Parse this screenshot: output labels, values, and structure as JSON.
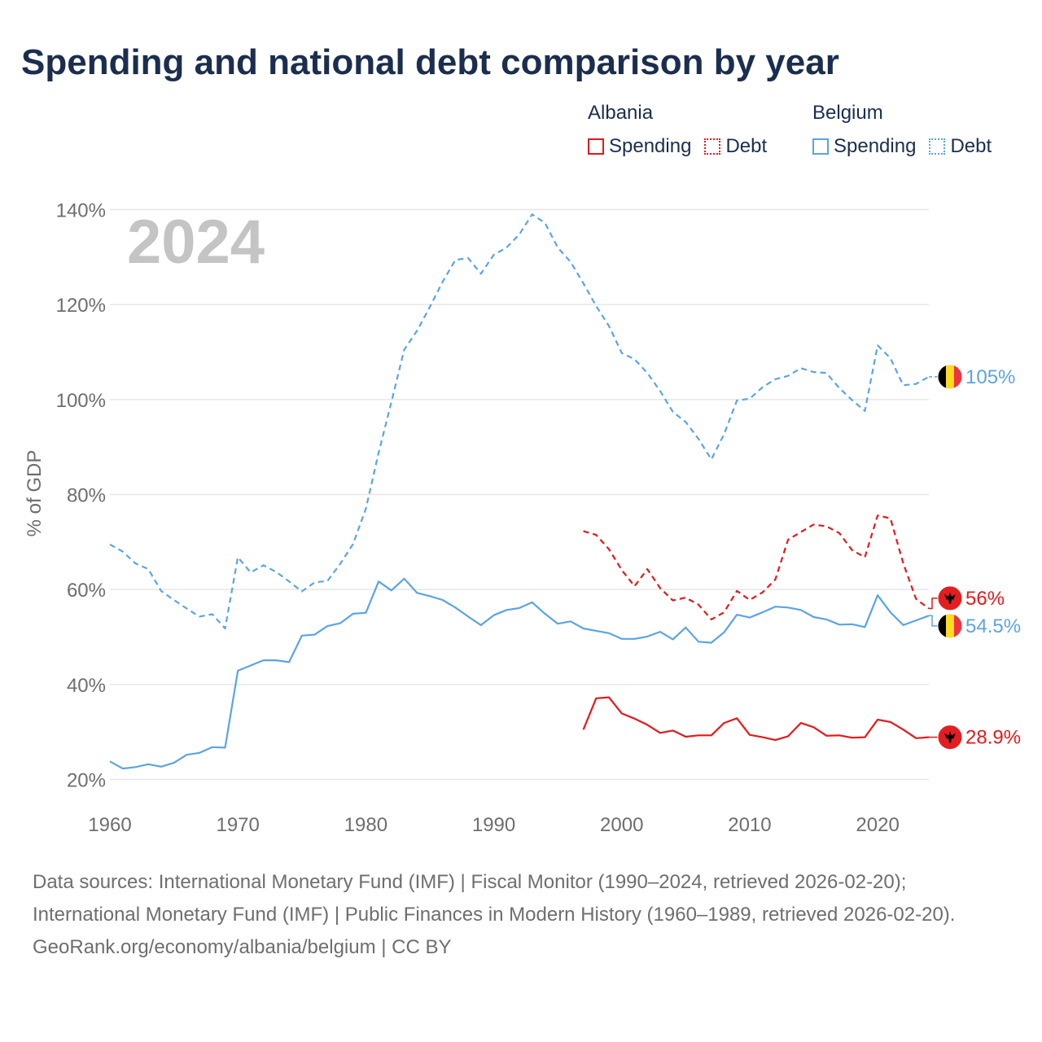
{
  "title": "Spending and national debt comparison by year",
  "legend": {
    "groups": [
      {
        "country": "Albania",
        "color": "#e31a1c",
        "spending_label": "Spending",
        "debt_label": "Debt"
      },
      {
        "country": "Belgium",
        "color": "#5ba4e5",
        "spending_label": "Spending",
        "debt_label": "Debt"
      }
    ]
  },
  "colors": {
    "albania": "#e31a1c",
    "belgium": "#5ba4e5",
    "grid": "#e6e6e6",
    "axis_text": "#6e6e6e",
    "year_watermark": "#c4c4c4",
    "title": "#1b2e4f"
  },
  "footer": {
    "sources": "Data sources: International Monetary Fund (IMF) | Fiscal Monitor (1990–2024, retrieved 2026-02-20); International Monetary Fund (IMF) | Public Finances in Modern History (1960–1989, retrieved 2026-02-20).",
    "credit": "GeoRank.org/economy/albania/belgium | CC BY"
  },
  "chart_data": {
    "type": "line",
    "title": "Spending and national debt comparison by year",
    "year_label": "2024",
    "xlabel": "",
    "ylabel": "% of GDP",
    "xlim": [
      1960,
      2024
    ],
    "ylim": [
      17,
      143
    ],
    "x_ticks": [
      1960,
      1970,
      1980,
      1990,
      2000,
      2010,
      2020
    ],
    "y_ticks": [
      20,
      40,
      60,
      80,
      100,
      120,
      140
    ],
    "y_tick_labels": [
      "20%",
      "40%",
      "60%",
      "80%",
      "100%",
      "120%",
      "140%"
    ],
    "grid": true,
    "legend_position": "top-right",
    "series": [
      {
        "name": "Belgium Debt",
        "country": "Belgium",
        "metric": "Debt",
        "style": "dashed",
        "color": "#5ba4e5",
        "end_label": "105%",
        "flag": "belgium",
        "start_year": 1960,
        "values": [
          69.5,
          68,
          65.5,
          64.3,
          59.7,
          57.8,
          56,
          54.3,
          54.8,
          51.8,
          66.8,
          63.6,
          65.1,
          63.7,
          61.7,
          59.6,
          61.5,
          61.8,
          65.4,
          69.6,
          77,
          88.8,
          99.5,
          110.5,
          114.5,
          119.5,
          124.8,
          129.4,
          129.8,
          126.5,
          130.5,
          132,
          134.8,
          139,
          137.2,
          132,
          129,
          124.5,
          119.7,
          115.5,
          109.8,
          108.5,
          105.6,
          101.8,
          97.4,
          95.3,
          91.7,
          87.4,
          92.7,
          99.8,
          100.2,
          102.6,
          104.3,
          105,
          106.6,
          105.8,
          105.6,
          102.4,
          99.9,
          97.6,
          111.4,
          108.7,
          103,
          103.3,
          104.8
        ]
      },
      {
        "name": "Belgium Spending",
        "country": "Belgium",
        "metric": "Spending",
        "style": "solid",
        "color": "#5ba4e5",
        "end_label": "54.5%",
        "flag": "belgium",
        "start_year": 1960,
        "values": [
          23.8,
          22.3,
          22.6,
          23.2,
          22.7,
          23.5,
          25.2,
          25.6,
          26.8,
          26.7,
          42.9,
          44,
          45.1,
          45.1,
          44.7,
          50.3,
          50.5,
          52.3,
          52.9,
          54.9,
          55.1,
          61.7,
          59.8,
          62.3,
          59.3,
          58.6,
          57.8,
          56.2,
          54.3,
          52.5,
          54.6,
          55.7,
          56.1,
          57.3,
          54.9,
          52.8,
          53.3,
          51.8,
          51.3,
          50.8,
          49.6,
          49.6,
          50.1,
          51.1,
          49.5,
          52,
          49,
          48.8,
          51,
          54.7,
          54.1,
          55.2,
          56.4,
          56.2,
          55.7,
          54.2,
          53.7,
          52.6,
          52.7,
          52.1,
          58.8,
          55.2,
          52.5,
          53.5,
          54.5
        ]
      },
      {
        "name": "Albania Debt",
        "country": "Albania",
        "metric": "Debt",
        "style": "dashed",
        "color": "#e31a1c",
        "end_label": "56%",
        "flag": "albania",
        "start_year": 1997,
        "values": [
          72.3,
          71.5,
          68.5,
          64.1,
          60.7,
          64.3,
          60.3,
          57.7,
          58.3,
          56.8,
          53.7,
          55.2,
          59.7,
          57.8,
          59.4,
          62.1,
          70.5,
          72.1,
          73.7,
          73.3,
          71.9,
          68.3,
          66.8,
          75.6,
          75,
          65.5,
          58,
          56
        ]
      },
      {
        "name": "Albania Spending",
        "country": "Albania",
        "metric": "Spending",
        "style": "solid",
        "color": "#e31a1c",
        "end_label": "28.9%",
        "flag": "albania",
        "start_year": 1997,
        "values": [
          30.5,
          37.1,
          37.3,
          33.9,
          32.8,
          31.5,
          29.8,
          30.3,
          29,
          29.3,
          29.3,
          31.9,
          32.9,
          29.4,
          28.9,
          28.3,
          29.1,
          31.9,
          31,
          29.2,
          29.3,
          28.8,
          28.9,
          32.6,
          32.1,
          30.5,
          28.7,
          28.9
        ]
      }
    ]
  }
}
